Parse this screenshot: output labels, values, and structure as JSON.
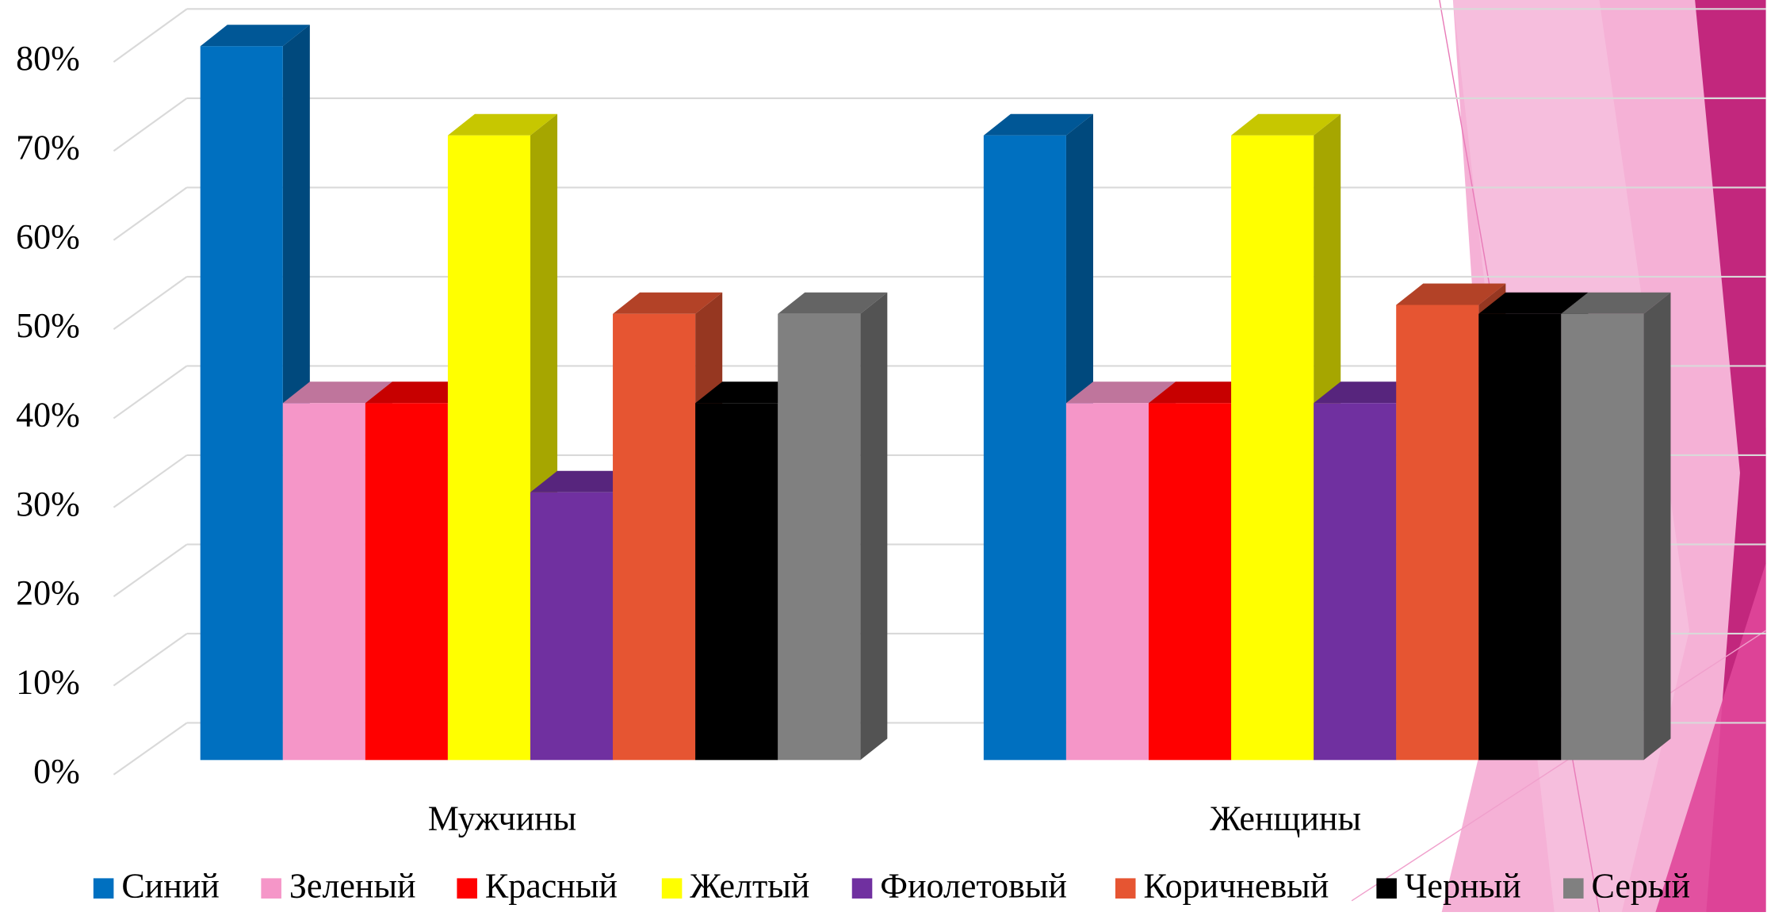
{
  "chart_data": {
    "type": "bar3d",
    "categories": [
      "Мужчины",
      "Женщины"
    ],
    "series": [
      {
        "name": "Синий",
        "color": "#0070c0",
        "values": [
          80,
          70
        ]
      },
      {
        "name": "Зеленый",
        "color": "#f596c8",
        "values": [
          40,
          40
        ]
      },
      {
        "name": "Красный",
        "color": "#ff0000",
        "values": [
          40,
          40
        ]
      },
      {
        "name": "Желтый",
        "color": "#ffff00",
        "values": [
          70,
          70
        ]
      },
      {
        "name": "Фиолетовый",
        "color": "#7030a0",
        "values": [
          30,
          40
        ]
      },
      {
        "name": "Коричневый",
        "color": "#e65532",
        "values": [
          50,
          51
        ]
      },
      {
        "name": "Черный",
        "color": "#000000",
        "values": [
          40,
          50
        ]
      },
      {
        "name": "Серый",
        "color": "#808080",
        "values": [
          50,
          50
        ]
      }
    ],
    "ylim": [
      0,
      80
    ],
    "yticks": [
      {
        "value": 0,
        "label": "0%"
      },
      {
        "value": 10,
        "label": "10%"
      },
      {
        "value": 20,
        "label": "20%"
      },
      {
        "value": 30,
        "label": "30%"
      },
      {
        "value": 40,
        "label": "40%"
      },
      {
        "value": 50,
        "label": "50%"
      },
      {
        "value": 60,
        "label": "60%"
      },
      {
        "value": 70,
        "label": "70%"
      },
      {
        "value": 80,
        "label": "80%"
      }
    ],
    "grid": true,
    "legend": "bottom"
  }
}
